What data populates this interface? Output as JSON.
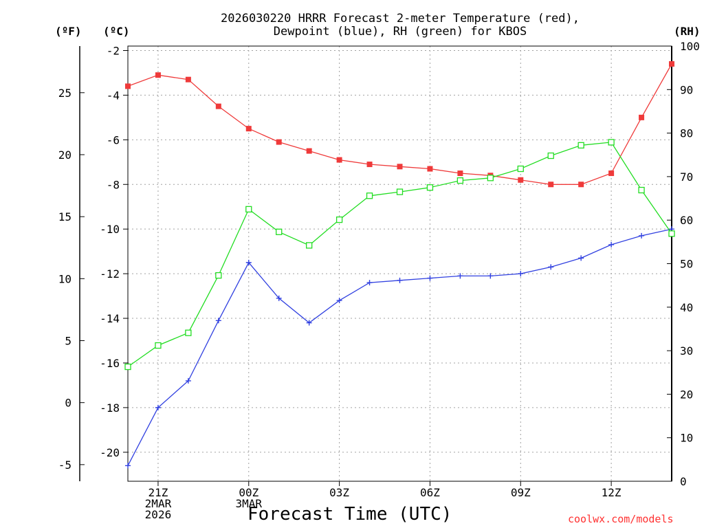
{
  "chart_data": {
    "type": "line",
    "title_lines": [
      "2026030220 HRRR Forecast 2-meter Temperature (red),",
      "Dewpoint (blue), RH (green) for KBOS"
    ],
    "unit_f": "(ºF)",
    "unit_c": "(ºC)",
    "unit_rh": "(RH)",
    "xlabel": "Forecast Time (UTC)",
    "credit": "coolwx.com/models",
    "x": [
      20,
      21,
      22,
      23,
      24,
      25,
      26,
      27,
      28,
      29,
      30,
      31,
      32,
      33,
      34,
      35,
      36,
      37,
      38
    ],
    "xlim": [
      20,
      38
    ],
    "x_ticks": [
      {
        "x": 21,
        "labels": [
          "21Z",
          "2MAR",
          "2026"
        ]
      },
      {
        "x": 24,
        "labels": [
          "00Z",
          "3MAR"
        ]
      },
      {
        "x": 27,
        "labels": [
          "03Z"
        ]
      },
      {
        "x": 30,
        "labels": [
          "06Z"
        ]
      },
      {
        "x": 33,
        "labels": [
          "09Z"
        ]
      },
      {
        "x": 36,
        "labels": [
          "12Z"
        ]
      }
    ],
    "celsius_axis": {
      "lim": [
        -21.3,
        -1.8
      ],
      "ticks": [
        -2,
        -4,
        -6,
        -8,
        -10,
        -12,
        -14,
        -16,
        -18,
        -20
      ]
    },
    "fahrenheit_axis": {
      "ticks": [
        25,
        20,
        15,
        10,
        5,
        0,
        -5
      ]
    },
    "rh_axis": {
      "lim": [
        0,
        100
      ],
      "ticks": [
        100,
        90,
        80,
        70,
        60,
        50,
        40,
        30,
        20,
        10,
        0
      ]
    },
    "grid": true,
    "series": [
      {
        "name": "Temperature",
        "unit": "C",
        "color": "#ef3a3a",
        "marker": "filled-square",
        "values": [
          -3.6,
          -3.1,
          -3.3,
          -4.5,
          -5.5,
          -6.1,
          -6.5,
          -6.9,
          -7.1,
          -7.2,
          -7.3,
          -7.5,
          -7.6,
          -7.8,
          -8.0,
          -8.0,
          -7.5,
          -5.0,
          -2.6
        ]
      },
      {
        "name": "Dewpoint",
        "unit": "C",
        "color": "#3040e0",
        "marker": "plus",
        "values": [
          -20.6,
          -18.0,
          -16.8,
          -14.1,
          -11.5,
          -13.1,
          -14.2,
          -13.2,
          -12.4,
          -12.3,
          -12.2,
          -12.1,
          -12.1,
          -12.0,
          -11.7,
          -11.3,
          -10.7,
          -10.3,
          -10.0
        ]
      },
      {
        "name": "RH",
        "unit": "%",
        "color": "#22dd22",
        "marker": "open-square",
        "values": [
          26.3,
          31.2,
          34.1,
          47.3,
          62.5,
          57.3,
          54.2,
          60.1,
          65.6,
          66.5,
          67.5,
          69.1,
          69.7,
          71.8,
          74.8,
          77.2,
          77.9,
          66.9,
          56.9
        ]
      }
    ]
  }
}
